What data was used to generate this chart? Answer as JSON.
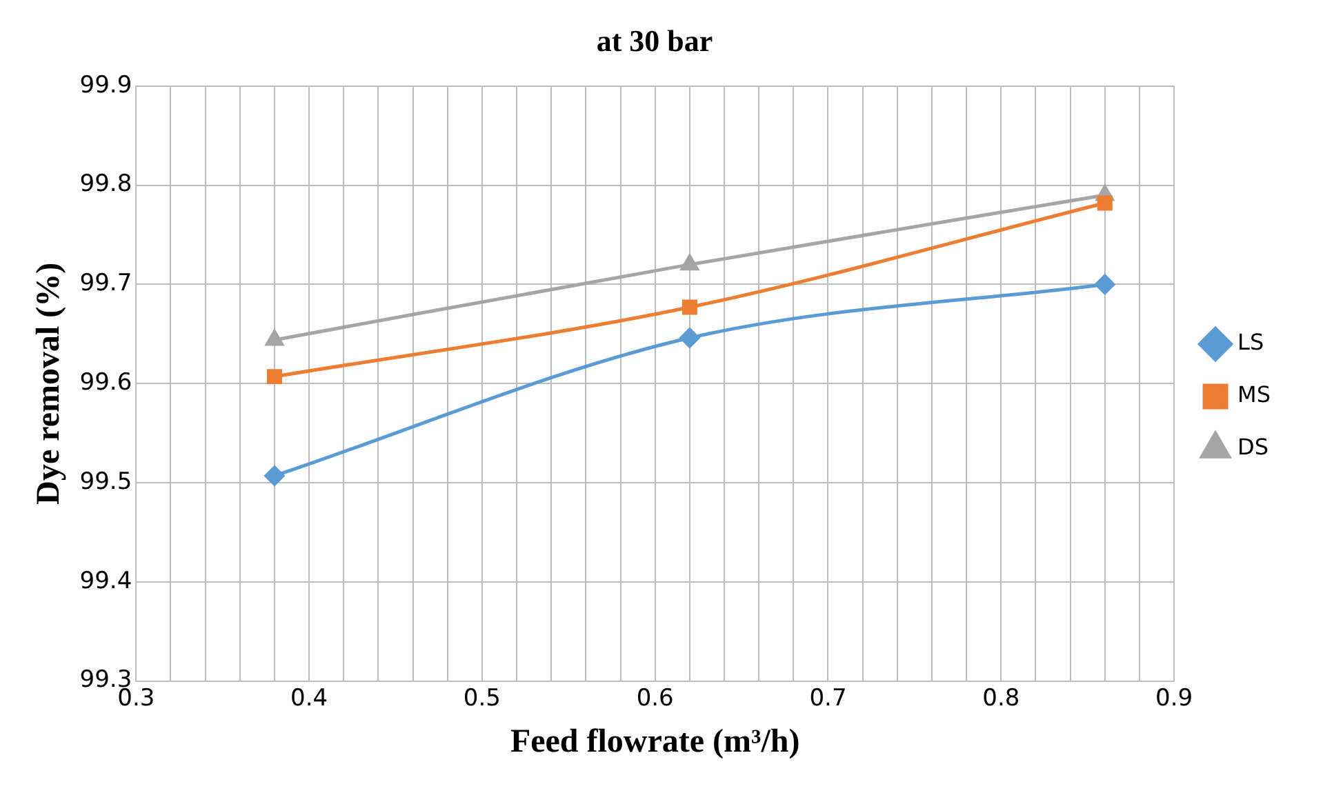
{
  "chart_data": {
    "type": "line",
    "title": "at 30 bar",
    "xlabel": "Feed flowrate (m³/h)",
    "ylabel": "Dye removal (%)",
    "x": [
      0.38,
      0.62,
      0.86
    ],
    "series": [
      {
        "name": "LS",
        "color": "#5b9bd5",
        "marker": "diamond",
        "values": [
          99.507,
          99.646,
          99.7
        ]
      },
      {
        "name": "MS",
        "color": "#ed7d31",
        "marker": "square",
        "values": [
          99.607,
          99.677,
          99.782
        ]
      },
      {
        "name": "DS",
        "color": "#a5a5a5",
        "marker": "triangle",
        "values": [
          99.644,
          99.72,
          99.79
        ]
      }
    ],
    "xlim": [
      0.3,
      0.9
    ],
    "xticks": [
      0.3,
      {
        "value": 0.32,
        "label": null
      },
      {
        "value": 0.34,
        "label": null
      },
      {
        "value": 0.36,
        "label": null
      },
      {
        "value": 0.38,
        "label": null
      },
      0.4,
      {
        "value": 0.42,
        "label": null
      },
      {
        "value": 0.44,
        "label": null
      },
      {
        "value": 0.46,
        "label": null
      },
      {
        "value": 0.48,
        "label": null
      },
      0.5,
      {
        "value": 0.52,
        "label": null
      },
      {
        "value": 0.54,
        "label": null
      },
      {
        "value": 0.56,
        "label": null
      },
      {
        "value": 0.58,
        "label": null
      },
      0.6,
      {
        "value": 0.62,
        "label": null
      },
      {
        "value": 0.64,
        "label": null
      },
      {
        "value": 0.66,
        "label": null
      },
      {
        "value": 0.68,
        "label": null
      },
      0.7,
      {
        "value": 0.72,
        "label": null
      },
      {
        "value": 0.74,
        "label": null
      },
      {
        "value": 0.76,
        "label": null
      },
      {
        "value": 0.78,
        "label": null
      },
      0.8,
      {
        "value": 0.82,
        "label": null
      },
      {
        "value": 0.84,
        "label": null
      },
      {
        "value": 0.86,
        "label": null
      },
      {
        "value": 0.88,
        "label": null
      },
      0.9
    ],
    "ylim": [
      99.3,
      99.9
    ],
    "yticks": [
      99.3,
      99.4,
      99.5,
      99.6,
      99.7,
      99.8,
      99.9
    ],
    "grid": true,
    "legend": "right",
    "line_style": "solid"
  }
}
